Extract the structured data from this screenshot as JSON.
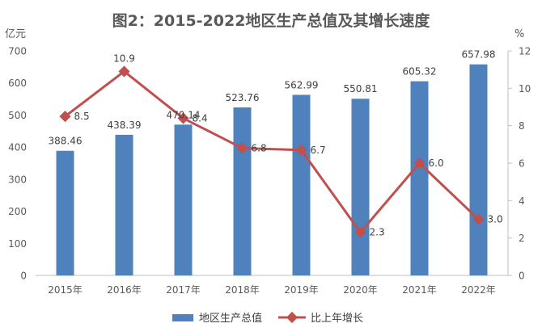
{
  "chart_data": {
    "type": "bar+line",
    "title": "图2：2015-2022地区生产总值及其增长速度",
    "categories": [
      "2015年",
      "2016年",
      "2017年",
      "2018年",
      "2019年",
      "2020年",
      "2021年",
      "2022年"
    ],
    "left_axis": {
      "label": "亿元",
      "min": 0,
      "max": 700,
      "step": 100,
      "ticks": [
        "0",
        "100",
        "200",
        "300",
        "400",
        "500",
        "600",
        "700"
      ]
    },
    "right_axis": {
      "label": "%",
      "min": 0,
      "max": 12,
      "step": 2,
      "ticks": [
        "0",
        "2",
        "4",
        "6",
        "8",
        "10",
        "12"
      ]
    },
    "series": [
      {
        "name": "地区生产总值",
        "type": "bar",
        "axis": "left",
        "color": "#4F81BD",
        "values": [
          388.46,
          438.39,
          470.14,
          523.76,
          562.99,
          550.81,
          605.32,
          657.98
        ],
        "labels": [
          "388.46",
          "438.39",
          "470.14",
          "523.76",
          "562.99",
          "550.81",
          "605.32",
          "657.98"
        ]
      },
      {
        "name": "比上年增长",
        "type": "line",
        "axis": "right",
        "color": "#C0504D",
        "values": [
          8.5,
          10.9,
          8.4,
          6.8,
          6.7,
          2.3,
          6.0,
          3.0
        ],
        "labels": [
          "8.5",
          "10.9",
          "8.4",
          "6.8",
          "6.7",
          "2.3",
          "6.0",
          "3.0"
        ]
      }
    ],
    "legend_position": "bottom"
  }
}
